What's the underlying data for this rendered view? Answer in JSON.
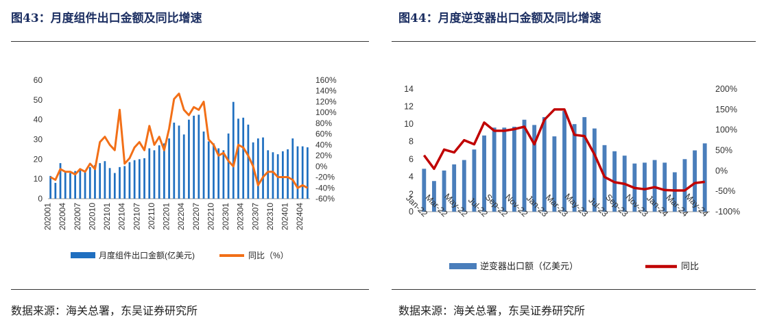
{
  "panels": [
    {
      "title": "图43：月度组件出口金额及同比增速",
      "source": "数据来源：海关总署，东吴证券研究所"
    },
    {
      "title": "图44：月度逆变器出口金额及同比增速",
      "source": "数据来源：海关总署，东吴证券研究所"
    }
  ],
  "chart_data": [
    {
      "type": "bar",
      "title": "",
      "bar_color": "#1f6fc0",
      "line_color": "#f26f17",
      "y_left": {
        "ticks": [
          "0",
          "10",
          "20",
          "30",
          "40",
          "50",
          "60"
        ],
        "range": [
          0,
          60
        ]
      },
      "y_right": {
        "ticks": [
          "-60%",
          "-40%",
          "-20%",
          "0%",
          "20%",
          "40%",
          "60%",
          "80%",
          "100%",
          "120%",
          "140%",
          "160%"
        ],
        "range": [
          -60,
          160
        ]
      },
      "x_tick_labels": [
        "202001",
        "202004",
        "202007",
        "202010",
        "202101",
        "202104",
        "202107",
        "202110",
        "202201",
        "202204",
        "202207",
        "202210",
        "202301",
        "202304",
        "202307",
        "202310",
        "202401",
        "202404"
      ],
      "categories": [
        "202001",
        "202002",
        "202003",
        "202004",
        "202005",
        "202006",
        "202007",
        "202008",
        "202009",
        "202010",
        "202011",
        "202012",
        "202101",
        "202102",
        "202103",
        "202104",
        "202105",
        "202106",
        "202107",
        "202108",
        "202109",
        "202110",
        "202111",
        "202112",
        "202201",
        "202202",
        "202203",
        "202204",
        "202205",
        "202206",
        "202207",
        "202208",
        "202209",
        "202210",
        "202211",
        "202212",
        "202301",
        "202302",
        "202303",
        "202304",
        "202305",
        "202306",
        "202307",
        "202308",
        "202309",
        "202310",
        "202311",
        "202312",
        "202401",
        "202402",
        "202403",
        "202404",
        "202405"
      ],
      "series": [
        {
          "name": "月度组件出口金额(亿美元)",
          "kind": "bar",
          "values": [
            11.5,
            8,
            18,
            14,
            13,
            14,
            15,
            14,
            16,
            17,
            18,
            19,
            15.5,
            13,
            16,
            16.5,
            18.5,
            19.5,
            20,
            20.5,
            25.5,
            24.5,
            27,
            28,
            30.5,
            38.5,
            37,
            32.5,
            40,
            42,
            42.5,
            34,
            29,
            28,
            25.5,
            24.5,
            33,
            49,
            40.5,
            41,
            37.5,
            28.5,
            30.5,
            31,
            24.5,
            23.5,
            22.5,
            24,
            25,
            30.5,
            26.5,
            26.5,
            26
          ]
        },
        {
          "name": "同比（%）",
          "kind": "line",
          "values": [
            -20,
            -25,
            -5,
            -10,
            -10,
            -15,
            -5,
            -10,
            5,
            -5,
            45,
            55,
            40,
            30,
            105,
            5,
            15,
            35,
            45,
            30,
            75,
            40,
            55,
            30,
            70,
            125,
            135,
            105,
            95,
            110,
            105,
            120,
            50,
            40,
            20,
            25,
            10,
            0,
            40,
            35,
            20,
            0,
            -35,
            -20,
            -10,
            -10,
            -20,
            -20,
            -20,
            -25,
            -40,
            -35,
            -40
          ]
        }
      ]
    },
    {
      "type": "bar",
      "title": "",
      "bar_color": "#4a7ebb",
      "line_color": "#c00000",
      "y_left": {
        "ticks": [
          "0",
          "2",
          "4",
          "6",
          "8",
          "10",
          "12",
          "14"
        ],
        "range": [
          0,
          14
        ]
      },
      "y_right": {
        "ticks": [
          "-100%",
          "-50%",
          "0%",
          "50%",
          "100%",
          "150%",
          "200%"
        ],
        "range": [
          -100,
          200
        ]
      },
      "x_tick_labels": [
        "Jan-22",
        "Mar-22",
        "May-22",
        "Jul-22",
        "Sep-22",
        "Nov-22",
        "Jan-23",
        "Mar-23",
        "May-23",
        "Jul-23",
        "Sep-23",
        "Nov-23",
        "Jan-24",
        "Mar-24",
        "May-24"
      ],
      "categories": [
        "Jan-22",
        "Feb-22",
        "Mar-22",
        "Apr-22",
        "May-22",
        "Jun-22",
        "Jul-22",
        "Aug-22",
        "Sep-22",
        "Oct-22",
        "Nov-22",
        "Dec-22",
        "Jan-23",
        "Feb-23",
        "Mar-23",
        "Apr-23",
        "May-23",
        "Jun-23",
        "Jul-23",
        "Aug-23",
        "Sep-23",
        "Oct-23",
        "Nov-23",
        "Dec-23",
        "Jan-24",
        "Feb-24",
        "Mar-24",
        "Apr-24",
        "May-24"
      ],
      "series": [
        {
          "name": "逆变器出口额（亿美元）",
          "kind": "bar",
          "values": [
            4.9,
            3.5,
            4.7,
            5.4,
            5.9,
            7.1,
            8.7,
            9.6,
            9.6,
            9.7,
            10.5,
            9.9,
            10.8,
            8.6,
            11.5,
            10.0,
            10.8,
            9.5,
            7.6,
            6.9,
            6.4,
            5.5,
            5.6,
            5.9,
            5.6,
            4.5,
            6.0,
            7.0,
            7.8
          ]
        },
        {
          "name": "同比",
          "kind": "line",
          "values": [
            38,
            5,
            52,
            45,
            75,
            65,
            118,
            98,
            98,
            102,
            108,
            65,
            125,
            150,
            150,
            88,
            85,
            40,
            -15,
            -28,
            -32,
            -42,
            -45,
            -40,
            -47,
            -48,
            -48,
            -30,
            -27
          ]
        }
      ]
    }
  ]
}
